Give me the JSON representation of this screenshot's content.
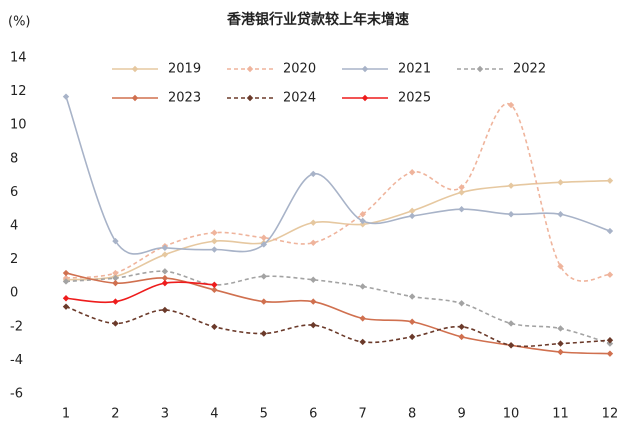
{
  "chart_data": {
    "type": "line",
    "title": "香港银行业贷款较上年末增速",
    "y_label": "(%)",
    "categories": [
      "1",
      "2",
      "3",
      "4",
      "5",
      "6",
      "7",
      "8",
      "9",
      "10",
      "11",
      "12"
    ],
    "ylim": [
      -6,
      14
    ],
    "yticks": [
      -6,
      -4,
      -2,
      0,
      2,
      4,
      6,
      8,
      10,
      12,
      14
    ],
    "grid": false,
    "legend": "top",
    "series": [
      {
        "name": "2019",
        "color": "#e6c8a0",
        "dashed": false,
        "values": [
          0.8,
          1.0,
          2.3,
          3.1,
          3.0,
          4.2,
          4.1,
          4.9,
          6.0,
          6.4,
          6.6,
          6.7
        ]
      },
      {
        "name": "2020",
        "color": "#efb49c",
        "dashed": true,
        "values": [
          0.9,
          1.2,
          2.8,
          3.6,
          3.3,
          3.0,
          4.7,
          7.2,
          6.3,
          11.2,
          1.6,
          1.1
        ]
      },
      {
        "name": "2021",
        "color": "#a8b3c8",
        "dashed": false,
        "values": [
          11.7,
          3.1,
          2.7,
          2.6,
          2.9,
          7.1,
          4.3,
          4.6,
          5.0,
          4.7,
          4.7,
          3.7
        ]
      },
      {
        "name": "2022",
        "color": "#a3a3a3",
        "dashed": true,
        "values": [
          0.7,
          0.9,
          1.3,
          0.5,
          1.0,
          0.8,
          0.4,
          -0.2,
          -0.6,
          -1.8,
          -2.1,
          -3.0
        ]
      },
      {
        "name": "2023",
        "color": "#d0704f",
        "dashed": false,
        "values": [
          1.2,
          0.6,
          0.9,
          0.2,
          -0.5,
          -0.5,
          -1.5,
          -1.7,
          -2.6,
          -3.1,
          -3.5,
          -3.6
        ]
      },
      {
        "name": "2024",
        "color": "#6b3a2a",
        "dashed": true,
        "values": [
          -0.8,
          -1.8,
          -1.0,
          -2.0,
          -2.4,
          -1.9,
          -2.9,
          -2.6,
          -2.0,
          -3.1,
          -3.0,
          -2.8
        ]
      },
      {
        "name": "2025",
        "color": "#ee1c1c",
        "dashed": false,
        "values": [
          -0.3,
          -0.5,
          0.6,
          0.5,
          null,
          null,
          null,
          null,
          null,
          null,
          null,
          null
        ]
      }
    ]
  }
}
